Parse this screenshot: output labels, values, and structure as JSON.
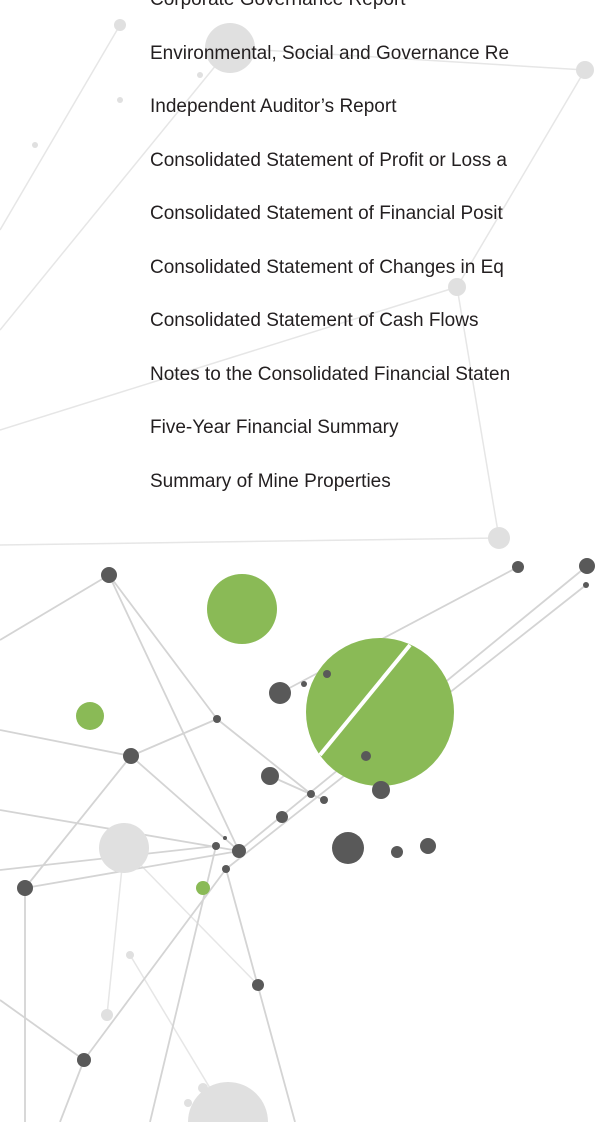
{
  "toc": {
    "items": [
      "Corporate Governance Report",
      "Environmental, Social and Governance Re",
      "Independent Auditor’s Report",
      "Consolidated Statement of Profit or Loss a",
      "Consolidated Statement of Financial Posit",
      "Consolidated Statement of Changes in Eq",
      "Consolidated Statement of Cash Flows",
      "Notes to the Consolidated Financial Staten",
      "Five-Year Financial Summary",
      "Summary of Mine Properties"
    ]
  }
}
